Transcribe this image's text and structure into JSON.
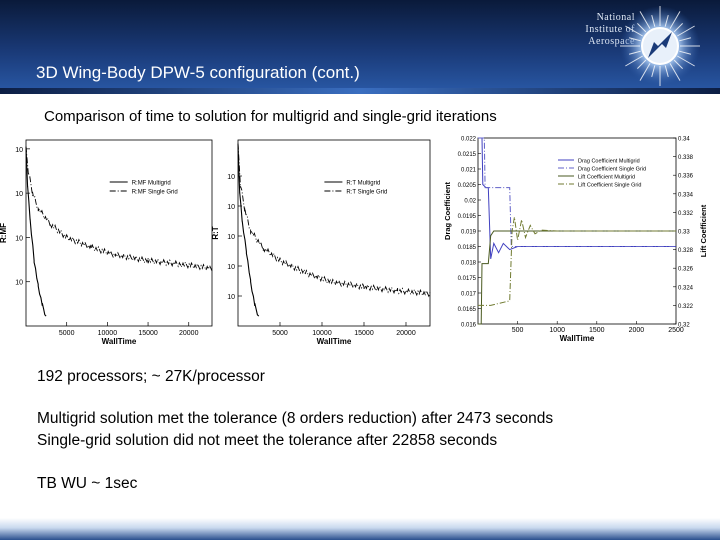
{
  "slide": {
    "title": "3D Wing-Body DPW-5 configuration (cont.)",
    "subtitle": "Comparison of time to solution for multigrid and single-grid iterations",
    "logo_lines": [
      "National",
      "Institute of",
      "Aerospace"
    ],
    "body": [
      "192 processors; ~ 27K/processor",
      "Multigrid solution met the tolerance (8 orders reduction) after 2473 seconds",
      "Single-grid solution did not meet the tolerance after 22858 seconds",
      "TB WU ~ 1sec"
    ]
  },
  "colors": {
    "header_dark": "#0a1a3a",
    "header_light": "#2a5aa8",
    "drag_mg": "#4040c0",
    "drag_sg": "#6060c8",
    "lift_mg": "#4a5a20",
    "lift_sg": "#707a30"
  },
  "chart_data": [
    {
      "type": "line",
      "ylabel": "R:MF",
      "xlabel": "WallTime",
      "yscale": "log",
      "x_ticks": [
        "5000",
        "10000",
        "15000",
        "20000"
      ],
      "y_ticks": [
        "10",
        "10",
        "10",
        "10"
      ],
      "xlim": [
        0,
        22858
      ],
      "legend_position": "upper-right",
      "series": [
        {
          "name": "R:MF Multigrid",
          "style": "solid",
          "x": [
            0,
            200,
            500,
            1000,
            1500,
            2000,
            2473
          ],
          "y": [
            10,
            1.5,
            0.25,
            0.03,
            0.008,
            0.003,
            0.0016
          ]
        },
        {
          "name": "R:MF Single Grid",
          "style": "dashdot",
          "x": [
            0,
            300,
            800,
            1500,
            3000,
            5000,
            8000,
            11000,
            15000,
            19000,
            22858
          ],
          "y": [
            10,
            3,
            1,
            0.45,
            0.2,
            0.1,
            0.06,
            0.04,
            0.03,
            0.025,
            0.02
          ]
        }
      ]
    },
    {
      "type": "line",
      "ylabel": "R:T",
      "xlabel": "WallTime",
      "yscale": "log",
      "x_ticks": [
        "5000",
        "10000",
        "15000",
        "20000"
      ],
      "y_ticks": [
        "10",
        "10",
        "10",
        "10",
        "10"
      ],
      "xlim": [
        0,
        22858
      ],
      "legend_position": "upper-right",
      "series": [
        {
          "name": "R:T Multigrid",
          "style": "solid",
          "x": [
            0,
            200,
            500,
            1000,
            1500,
            2000,
            2473
          ],
          "y": [
            100000,
            3000,
            300,
            30,
            3,
            0.5,
            0.2
          ]
        },
        {
          "name": "R:T Single Grid",
          "style": "dashdot",
          "x": [
            0,
            300,
            800,
            1500,
            3000,
            5000,
            8000,
            11000,
            15000,
            19000,
            22858
          ],
          "y": [
            100000,
            5000,
            800,
            150,
            40,
            15,
            6,
            3,
            2,
            1.5,
            1.2
          ]
        }
      ]
    },
    {
      "type": "line",
      "ylabel": "Drag Coefficient",
      "y2label": "Lift Coefficient",
      "xlabel": "WallTime",
      "x_ticks": [
        "500",
        "1000",
        "1500",
        "2000",
        "2500"
      ],
      "y_ticks": [
        "0.016",
        "0.0165",
        "0.017",
        "0.0175",
        "0.018",
        "0.0185",
        "0.019",
        "0.0195",
        "0.02",
        "0.0205",
        "0.021",
        "0.0215",
        "0.022"
      ],
      "y2_ticks": [
        "0.32",
        "0.322",
        "0.324",
        "0.326",
        "0.328",
        "0.33",
        "0.332",
        "0.334",
        "0.336",
        "0.338",
        "0.34"
      ],
      "xlim": [
        0,
        2500
      ],
      "ylim": [
        0.016,
        0.022
      ],
      "y2lim": [
        0.32,
        0.34
      ],
      "legend_position": "upper-right",
      "series": [
        {
          "name": "Drag Coefficient Multigrid",
          "axis": "left",
          "style": "solid",
          "x": [
            0,
            50,
            60,
            100,
            130,
            160,
            200,
            260,
            320,
            400,
            500,
            700,
            1000,
            1500,
            2000,
            2500
          ],
          "y": [
            0.022,
            0.022,
            0.0205,
            0.0204,
            0.0204,
            0.0181,
            0.0186,
            0.0183,
            0.0186,
            0.0184,
            0.0185,
            0.0185,
            0.0185,
            0.0185,
            0.0185,
            0.0185
          ]
        },
        {
          "name": "Drag Coefficient Single Grid",
          "axis": "left",
          "style": "dashdot",
          "x": [
            0,
            80,
            90,
            400,
            420,
            600,
            900,
            1500,
            2500
          ],
          "y": [
            0.022,
            0.022,
            0.0204,
            0.0204,
            0.0185,
            0.0185,
            0.0185,
            0.0185,
            0.0185
          ]
        },
        {
          "name": "Lift Coefficient Multigrid",
          "axis": "right",
          "style": "solid",
          "x": [
            0,
            40,
            50,
            130,
            160,
            200,
            260,
            320,
            400,
            500,
            1000,
            1500,
            2000,
            2500
          ],
          "y": [
            0.32,
            0.32,
            0.3265,
            0.3265,
            0.3295,
            0.33,
            0.33,
            0.33,
            0.33,
            0.33,
            0.33,
            0.33,
            0.33,
            0.33
          ]
        },
        {
          "name": "Lift Coefficient Single Grid",
          "axis": "right",
          "style": "dashdot",
          "x": [
            0,
            160,
            400,
            430,
            460,
            500,
            550,
            600,
            660,
            720,
            800,
            1000,
            1500,
            2500
          ],
          "y": [
            0.322,
            0.322,
            0.3225,
            0.33,
            0.3315,
            0.329,
            0.3312,
            0.3293,
            0.3306,
            0.3297,
            0.3301,
            0.33,
            0.33,
            0.33
          ]
        }
      ]
    }
  ]
}
